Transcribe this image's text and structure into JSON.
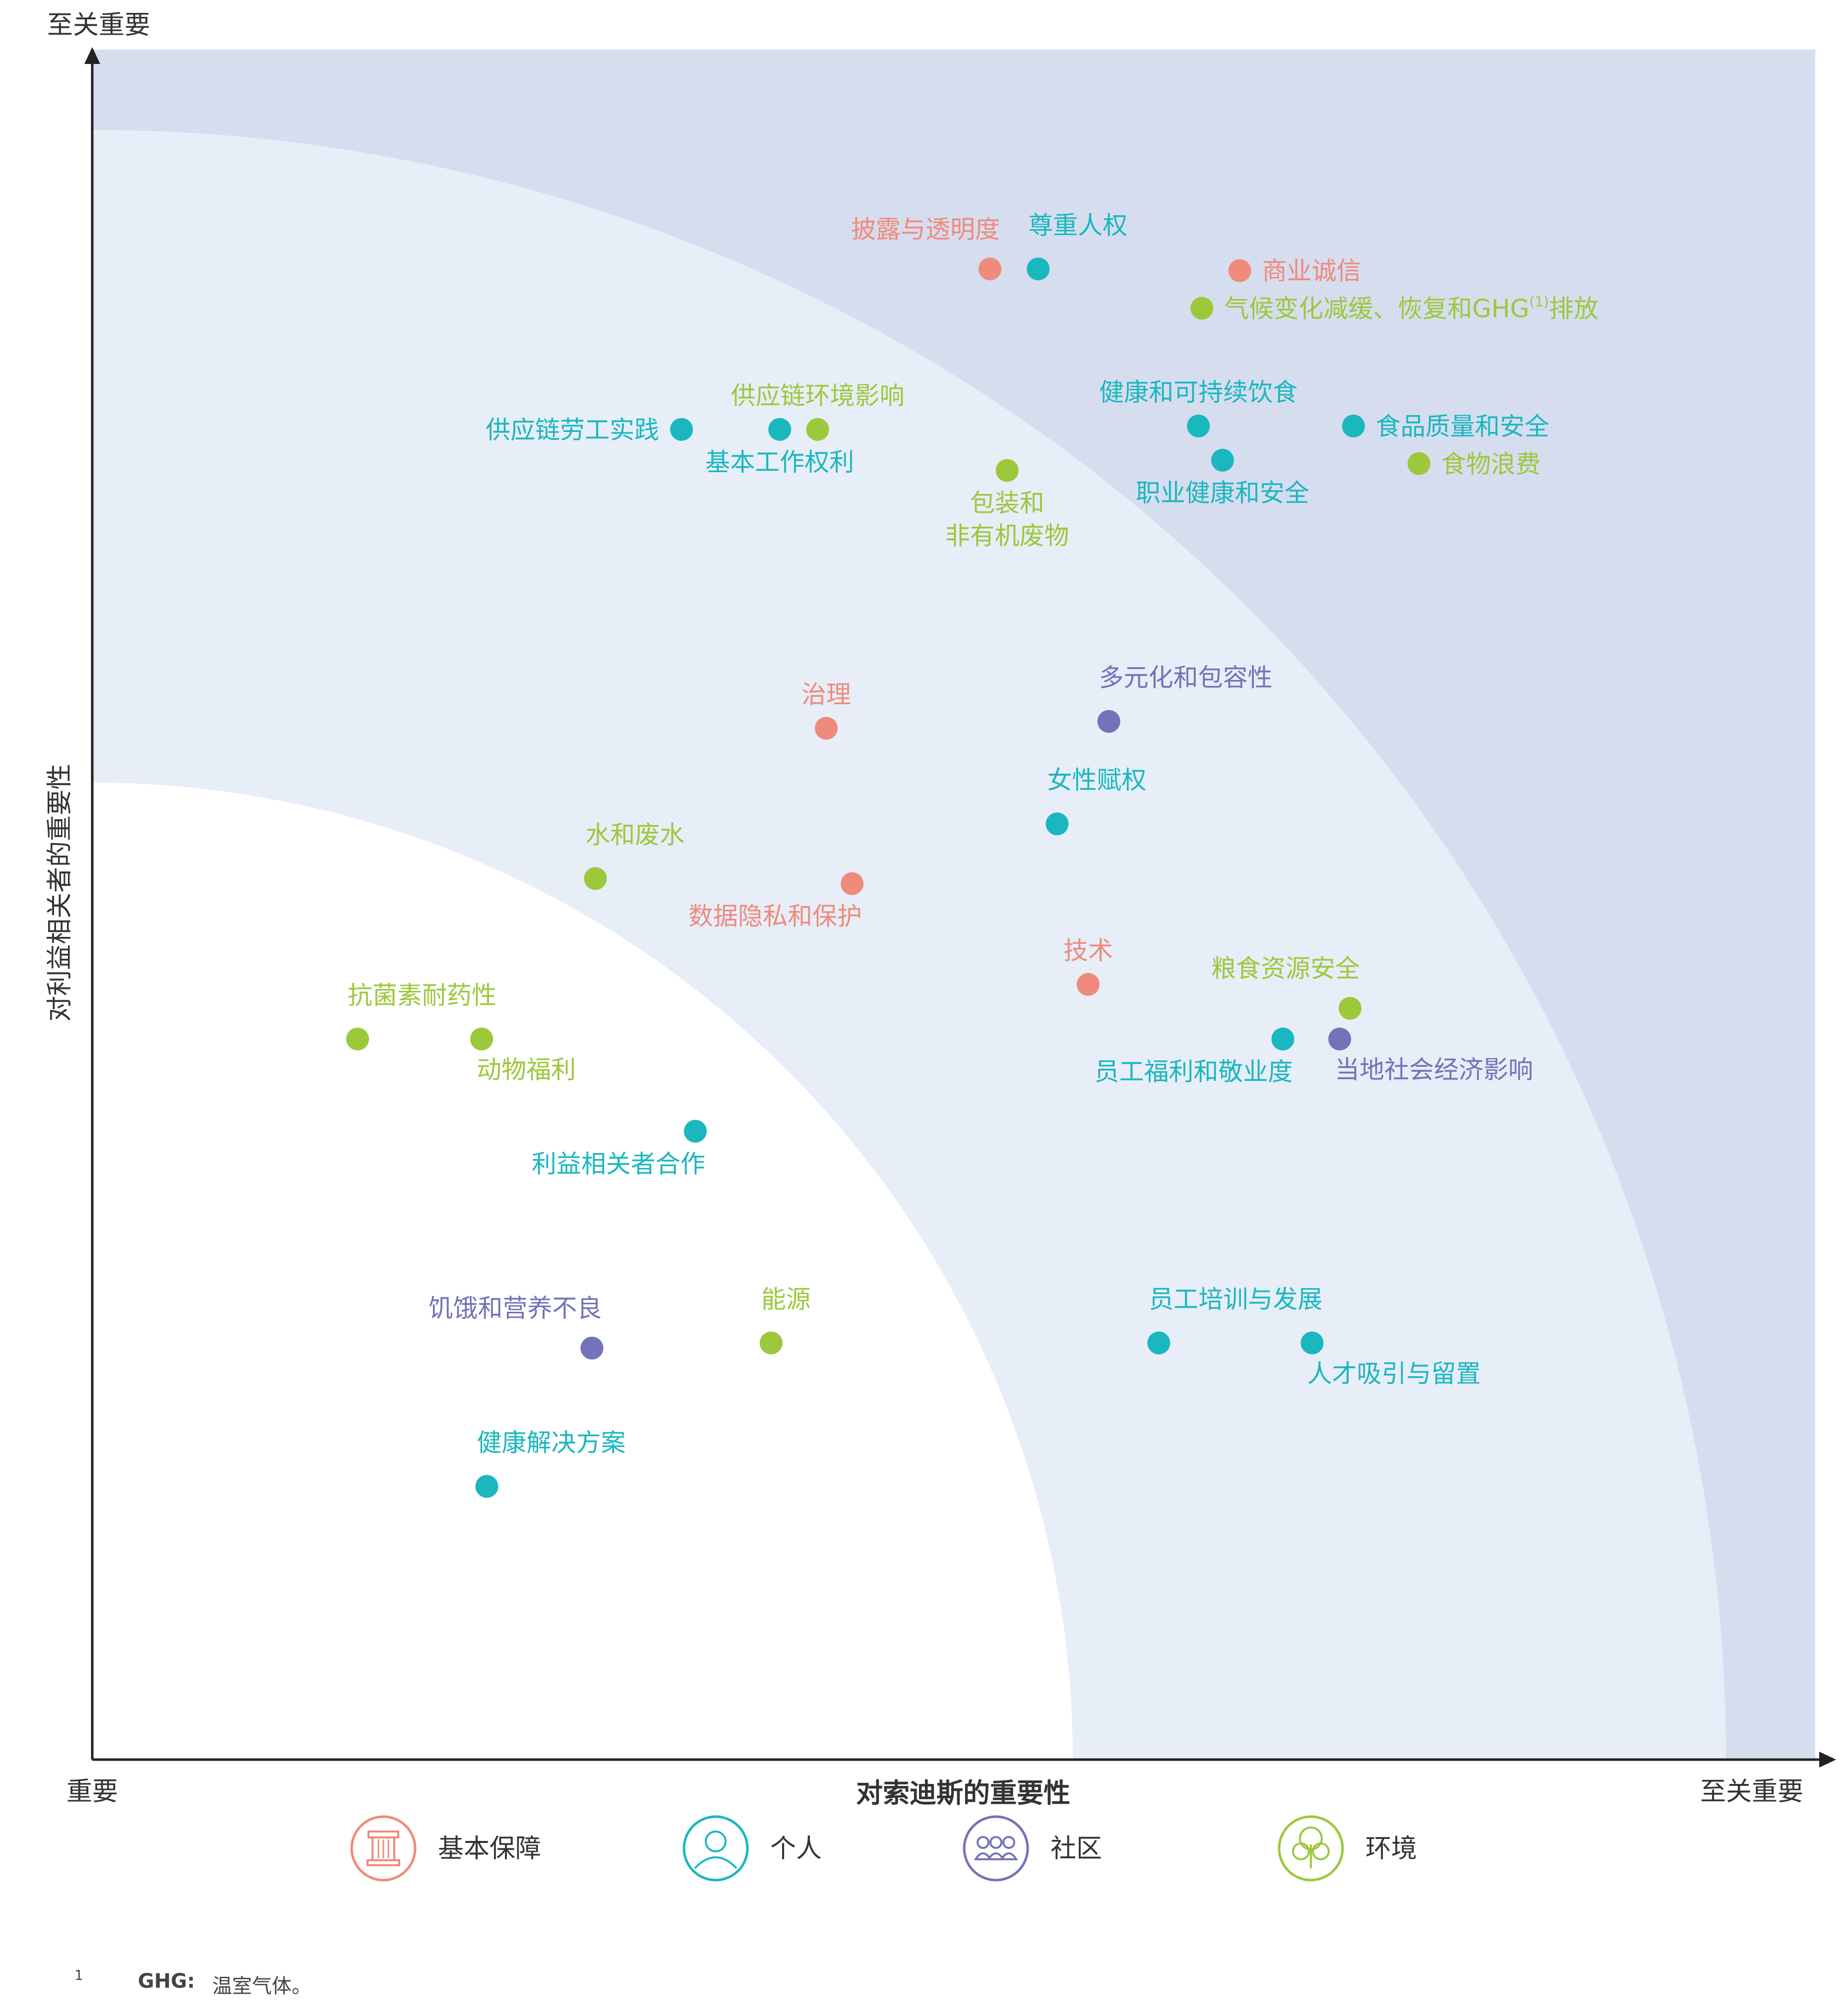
{
  "colors": {
    "foundation": "#f08a7c",
    "individual": "#1ab7bf",
    "community": "#7273b8",
    "environment": "#9cc83c",
    "zone_outer": "#d6ddef",
    "zone_middle": "#e7eef8",
    "zone_inner": "#ffffff"
  },
  "chart_data": {
    "type": "scatter",
    "xlabel": "对索迪斯的重要性",
    "ylabel": "对利益相关者的重要性",
    "x_low_label": "重要",
    "x_high_label": "至关重要",
    "y_high_label": "至关重要",
    "xlim": [
      0,
      100
    ],
    "ylim": [
      0,
      100
    ],
    "zones": [
      {
        "name": "outer",
        "radius_fraction": 1.0
      },
      {
        "name": "middle",
        "radius_fraction": 0.95
      },
      {
        "name": "inner",
        "radius_fraction": 0.57
      }
    ],
    "points": [
      {
        "label": "披露与透明度",
        "category": "foundation",
        "x": 52.1,
        "y": 87.3,
        "label_pos": "above-left"
      },
      {
        "label": "尊重人权",
        "category": "individual",
        "x": 54.9,
        "y": 87.3,
        "label_pos": "above-right"
      },
      {
        "label": "商业诚信",
        "category": "foundation",
        "x": 66.6,
        "y": 87.2,
        "label_pos": "right"
      },
      {
        "label": "气候变化减缓、恢复和GHG",
        "sup": "(1)",
        "suffix": "排放",
        "category": "environment",
        "x": 64.4,
        "y": 85.0,
        "label_pos": "right"
      },
      {
        "label": "供应链环境影响",
        "category": "environment",
        "x": 42.1,
        "y": 77.9,
        "label_pos": "above"
      },
      {
        "label": "供应链劳工实践",
        "category": "individual",
        "x": 34.2,
        "y": 77.9,
        "label_pos": "left"
      },
      {
        "label": "基本工作权利",
        "category": "individual",
        "x": 39.9,
        "y": 77.9,
        "label_pos": "below"
      },
      {
        "label": "健康和可持续饮食",
        "category": "individual",
        "x": 64.2,
        "y": 78.1,
        "label_pos": "above"
      },
      {
        "label": "食品质量和安全",
        "category": "individual",
        "x": 73.2,
        "y": 78.1,
        "label_pos": "right"
      },
      {
        "label": "职业健康和安全",
        "category": "individual",
        "x": 65.6,
        "y": 76.1,
        "label_pos": "below"
      },
      {
        "label": "食物浪费",
        "category": "environment",
        "x": 77.0,
        "y": 75.9,
        "label_pos": "right"
      },
      {
        "label": "包装和",
        "label2": "非有机废物",
        "category": "environment",
        "x": 53.1,
        "y": 75.5,
        "label_pos": "below"
      },
      {
        "label": "治理",
        "category": "foundation",
        "x": 42.6,
        "y": 60.4,
        "label_pos": "above"
      },
      {
        "label": "多元化和包容性",
        "category": "community",
        "x": 59.0,
        "y": 60.8,
        "label_pos": "above-right"
      },
      {
        "label": "女性赋权",
        "category": "individual",
        "x": 56.0,
        "y": 54.8,
        "label_pos": "above-right"
      },
      {
        "label": "水和废水",
        "category": "environment",
        "x": 29.2,
        "y": 51.6,
        "label_pos": "above-right"
      },
      {
        "label": "数据隐私和保护",
        "category": "foundation",
        "x": 44.1,
        "y": 51.3,
        "label_pos": "below-left"
      },
      {
        "label": "技术",
        "category": "foundation",
        "x": 57.8,
        "y": 45.4,
        "label_pos": "above"
      },
      {
        "label": "粮食资源安全",
        "category": "environment",
        "x": 73.0,
        "y": 44.0,
        "label_pos": "above-left"
      },
      {
        "label": "员工福利和敬业度",
        "category": "individual",
        "x": 69.1,
        "y": 42.2,
        "label_pos": "below-left"
      },
      {
        "label": "当地社会经济影响",
        "category": "community",
        "x": 72.4,
        "y": 42.2,
        "label_pos": "below-right"
      },
      {
        "label": "抗菌素耐药性",
        "category": "environment",
        "x": 15.4,
        "y": 42.2,
        "label_pos": "above-right"
      },
      {
        "label": "动物福利",
        "category": "environment",
        "x": 22.6,
        "y": 42.2,
        "label_pos": "below-right"
      },
      {
        "label": "利益相关者合作",
        "category": "individual",
        "x": 35.0,
        "y": 36.8,
        "label_pos": "below-left"
      },
      {
        "label": "饥饿和营养不良",
        "category": "community",
        "x": 29.0,
        "y": 24.1,
        "label_pos": "above-left"
      },
      {
        "label": "能源",
        "category": "environment",
        "x": 39.4,
        "y": 24.4,
        "label_pos": "above-right"
      },
      {
        "label": "员工培训与发展",
        "category": "individual",
        "x": 61.9,
        "y": 24.4,
        "label_pos": "above-right"
      },
      {
        "label": "人才吸引与留置",
        "category": "individual",
        "x": 70.8,
        "y": 24.4,
        "label_pos": "below-right"
      },
      {
        "label": "健康解决方案",
        "category": "individual",
        "x": 22.9,
        "y": 16.0,
        "label_pos": "above-right"
      }
    ]
  },
  "legend": [
    {
      "key": "foundation",
      "label": "基本保障",
      "icon": "pillar-icon"
    },
    {
      "key": "individual",
      "label": "个人",
      "icon": "person-icon"
    },
    {
      "key": "community",
      "label": "社区",
      "icon": "group-icon"
    },
    {
      "key": "environment",
      "label": "环境",
      "icon": "tree-icon"
    }
  ],
  "footnote": {
    "number": "1",
    "term": "GHG:",
    "definition": "温室气体。"
  }
}
